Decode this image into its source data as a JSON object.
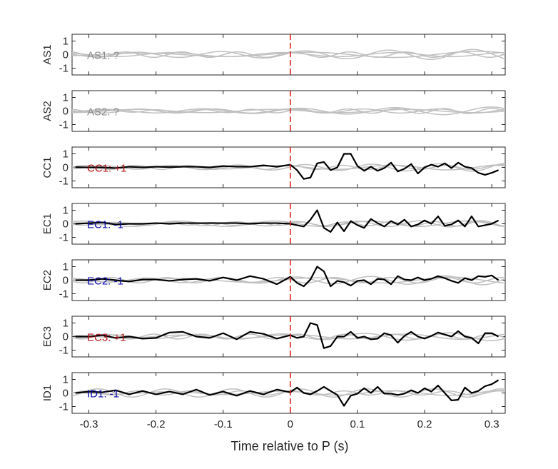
{
  "chart_data": {
    "type": "line",
    "xlabel": "Time relative to P (s)",
    "xlim": [
      -0.325,
      0.32
    ],
    "ylim": [
      -1.5,
      1.5
    ],
    "x_ticks": [
      -0.3,
      -0.2,
      -0.1,
      0,
      0.1,
      0.2,
      0.3
    ],
    "x_tick_labels": [
      "-0.3",
      "-0.2",
      "-0.1",
      "0",
      "0.1",
      "0.2",
      "0.3"
    ],
    "y_ticks": [
      -1,
      0,
      1
    ],
    "y_tick_labels": [
      "-1",
      "0",
      "1"
    ],
    "marker_time": 0,
    "colors": {
      "trace": "#000000",
      "background_traces": "#c0c0c0",
      "marker": "#e0231c",
      "label_unknown": "#8c8c8c",
      "label_positive": "#b01010",
      "label_negative": "#0a0aa8",
      "axes": "#262626"
    },
    "panels": [
      {
        "name": "AS1",
        "label": "AS1: ?",
        "polarity": "unknown",
        "trace": null,
        "background": [
          {
            "amp": 0.4,
            "freq": 8,
            "phase": 0.5,
            "envelope": "late"
          },
          {
            "amp": 0.2,
            "freq": 12,
            "phase": 1.2,
            "envelope": "flat"
          },
          {
            "amp": 0.15,
            "freq": 6,
            "phase": 2.0,
            "envelope": "flat"
          },
          {
            "amp": 0.25,
            "freq": 4,
            "phase": 0.9,
            "envelope": "late"
          }
        ]
      },
      {
        "name": "AS2",
        "label": "AS2: ?",
        "polarity": "unknown",
        "trace": null,
        "background": [
          {
            "amp": 0.2,
            "freq": 14,
            "phase": 0.3,
            "envelope": "late"
          },
          {
            "amp": 0.15,
            "freq": 9,
            "phase": 1.7,
            "envelope": "flat"
          },
          {
            "amp": 0.12,
            "freq": 5,
            "phase": 2.4,
            "envelope": "flat"
          },
          {
            "amp": 0.3,
            "freq": 7,
            "phase": 1.0,
            "envelope": "late"
          }
        ]
      },
      {
        "name": "CC1",
        "label": "CC1: +1",
        "polarity": "positive",
        "trace": {
          "x": [
            -0.32,
            -0.3,
            -0.28,
            -0.26,
            -0.24,
            -0.22,
            -0.2,
            -0.18,
            -0.16,
            -0.14,
            -0.12,
            -0.1,
            -0.08,
            -0.06,
            -0.04,
            -0.02,
            0.0,
            0.01,
            0.02,
            0.03,
            0.04,
            0.05,
            0.06,
            0.07,
            0.08,
            0.09,
            0.1,
            0.11,
            0.12,
            0.13,
            0.14,
            0.15,
            0.16,
            0.17,
            0.18,
            0.19,
            0.2,
            0.21,
            0.22,
            0.23,
            0.24,
            0.25,
            0.26,
            0.27,
            0.28,
            0.29,
            0.3,
            0.31
          ],
          "y": [
            0.02,
            0.0,
            0.0,
            -0.05,
            0.05,
            0.0,
            0.05,
            0.02,
            0.05,
            0.05,
            0.0,
            0.1,
            0.05,
            0.05,
            0.15,
            0.05,
            0.2,
            -0.2,
            -0.85,
            -0.75,
            0.3,
            0.4,
            -0.2,
            0.0,
            1.0,
            1.0,
            0.1,
            -0.25,
            0.05,
            -0.25,
            -0.05,
            0.35,
            -0.3,
            -0.1,
            0.25,
            -0.45,
            0.0,
            0.2,
            0.05,
            0.3,
            -0.05,
            0.35,
            0.05,
            -0.05,
            -0.4,
            -0.55,
            -0.4,
            -0.2
          ]
        },
        "background": [
          {
            "amp": 0.3,
            "freq": 10,
            "phase": 0.2,
            "envelope": "late"
          },
          {
            "amp": 0.15,
            "freq": 13,
            "phase": 1.5,
            "envelope": "flat"
          },
          {
            "amp": 0.2,
            "freq": 6,
            "phase": 2.2,
            "envelope": "late"
          }
        ]
      },
      {
        "name": "EC1",
        "label": "EC1: -1",
        "polarity": "negative",
        "trace": {
          "x": [
            -0.32,
            -0.3,
            -0.28,
            -0.26,
            -0.24,
            -0.22,
            -0.2,
            -0.18,
            -0.16,
            -0.14,
            -0.12,
            -0.1,
            -0.08,
            -0.06,
            -0.04,
            -0.02,
            0.0,
            0.01,
            0.02,
            0.03,
            0.04,
            0.05,
            0.06,
            0.07,
            0.08,
            0.09,
            0.1,
            0.11,
            0.12,
            0.13,
            0.14,
            0.15,
            0.16,
            0.17,
            0.18,
            0.19,
            0.2,
            0.21,
            0.22,
            0.23,
            0.24,
            0.25,
            0.26,
            0.27,
            0.28,
            0.29,
            0.3,
            0.31
          ],
          "y": [
            0.0,
            0.05,
            0.1,
            -0.05,
            0.0,
            0.0,
            0.05,
            0.0,
            0.05,
            0.05,
            0.05,
            0.05,
            0.05,
            0.0,
            0.05,
            0.05,
            0.0,
            -0.1,
            -0.2,
            0.3,
            1.0,
            -0.3,
            -0.6,
            0.1,
            -0.55,
            0.2,
            -0.1,
            -0.3,
            0.35,
            0.05,
            -0.2,
            0.2,
            -0.05,
            0.3,
            -0.2,
            -0.05,
            0.25,
            0.0,
            0.55,
            -0.15,
            -0.05,
            0.25,
            -0.2,
            0.55,
            -0.2,
            -0.1,
            0.0,
            0.25
          ]
        },
        "background": [
          {
            "amp": 0.25,
            "freq": 11,
            "phase": 0.9,
            "envelope": "late"
          },
          {
            "amp": 0.2,
            "freq": 7,
            "phase": 2.6,
            "envelope": "flat"
          },
          {
            "amp": 0.18,
            "freq": 15,
            "phase": 0.1,
            "envelope": "late"
          }
        ]
      },
      {
        "name": "EC2",
        "label": "EC2: -1",
        "polarity": "negative",
        "trace": {
          "x": [
            -0.32,
            -0.3,
            -0.28,
            -0.26,
            -0.24,
            -0.22,
            -0.2,
            -0.18,
            -0.16,
            -0.14,
            -0.12,
            -0.1,
            -0.08,
            -0.06,
            -0.04,
            -0.02,
            0.0,
            0.01,
            0.02,
            0.03,
            0.04,
            0.05,
            0.06,
            0.07,
            0.08,
            0.09,
            0.1,
            0.11,
            0.12,
            0.13,
            0.14,
            0.15,
            0.16,
            0.17,
            0.18,
            0.19,
            0.2,
            0.21,
            0.22,
            0.23,
            0.24,
            0.25,
            0.26,
            0.27,
            0.28,
            0.29,
            0.3,
            0.31
          ],
          "y": [
            0.0,
            0.0,
            0.1,
            0.0,
            -0.1,
            0.05,
            0.05,
            -0.05,
            0.05,
            0.1,
            -0.05,
            0.2,
            0.0,
            0.3,
            0.1,
            -0.3,
            0.25,
            -0.2,
            -0.45,
            0.05,
            1.0,
            0.65,
            -0.45,
            -0.05,
            -0.15,
            -0.4,
            -0.05,
            0.0,
            -0.3,
            0.1,
            0.05,
            -0.3,
            0.3,
            0.05,
            0.0,
            0.2,
            0.0,
            0.1,
            0.3,
            0.15,
            -0.05,
            -0.2,
            0.15,
            0.0,
            0.3,
            0.25,
            0.35,
            0.0
          ]
        },
        "background": [
          {
            "amp": 0.35,
            "freq": 9,
            "phase": 1.1,
            "envelope": "late"
          },
          {
            "amp": 0.2,
            "freq": 12,
            "phase": 2.9,
            "envelope": "flat"
          },
          {
            "amp": 0.25,
            "freq": 5,
            "phase": 0.4,
            "envelope": "late"
          }
        ]
      },
      {
        "name": "EC3",
        "label": "EC3: +1",
        "polarity": "positive",
        "trace": {
          "x": [
            -0.32,
            -0.3,
            -0.28,
            -0.26,
            -0.24,
            -0.22,
            -0.2,
            -0.18,
            -0.16,
            -0.14,
            -0.12,
            -0.1,
            -0.08,
            -0.06,
            -0.04,
            -0.02,
            0.0,
            0.01,
            0.02,
            0.03,
            0.04,
            0.05,
            0.06,
            0.07,
            0.08,
            0.09,
            0.1,
            0.11,
            0.12,
            0.13,
            0.14,
            0.15,
            0.16,
            0.17,
            0.18,
            0.19,
            0.2,
            0.21,
            0.22,
            0.23,
            0.24,
            0.25,
            0.26,
            0.27,
            0.28,
            0.29,
            0.3,
            0.31
          ],
          "y": [
            0.0,
            0.0,
            0.1,
            -0.1,
            0.0,
            -0.15,
            -0.1,
            0.3,
            0.35,
            0.0,
            -0.1,
            0.25,
            -0.2,
            0.35,
            0.2,
            -0.15,
            0.1,
            -0.1,
            0.0,
            1.0,
            0.85,
            -0.85,
            -0.7,
            0.0,
            0.0,
            0.35,
            -0.1,
            0.0,
            -0.2,
            -0.15,
            0.25,
            0.1,
            -0.45,
            0.05,
            0.35,
            0.0,
            -0.15,
            0.05,
            0.3,
            0.15,
            0.0,
            0.4,
            0.0,
            -0.1,
            -0.5,
            0.25,
            0.25,
            0.0
          ]
        },
        "background": [
          {
            "amp": 0.3,
            "freq": 8,
            "phase": 2.3,
            "envelope": "late"
          },
          {
            "amp": 0.18,
            "freq": 14,
            "phase": 0.6,
            "envelope": "flat"
          },
          {
            "amp": 0.22,
            "freq": 6,
            "phase": 1.4,
            "envelope": "late"
          }
        ]
      },
      {
        "name": "ID1",
        "label": "ID1: -1",
        "polarity": "negative",
        "trace": {
          "x": [
            -0.32,
            -0.3,
            -0.28,
            -0.26,
            -0.24,
            -0.22,
            -0.2,
            -0.18,
            -0.16,
            -0.14,
            -0.12,
            -0.1,
            -0.08,
            -0.06,
            -0.04,
            -0.02,
            0.0,
            0.01,
            0.02,
            0.03,
            0.04,
            0.05,
            0.06,
            0.07,
            0.08,
            0.09,
            0.1,
            0.11,
            0.12,
            0.13,
            0.14,
            0.15,
            0.16,
            0.17,
            0.18,
            0.19,
            0.2,
            0.21,
            0.22,
            0.23,
            0.24,
            0.25,
            0.26,
            0.27,
            0.28,
            0.29,
            0.3,
            0.31
          ],
          "y": [
            0.0,
            0.1,
            0.05,
            0.2,
            -0.1,
            0.15,
            -0.1,
            0.1,
            -0.1,
            0.25,
            -0.15,
            0.1,
            -0.2,
            0.15,
            -0.1,
            0.25,
            0.05,
            0.4,
            0.0,
            -0.1,
            0.15,
            0.45,
            0.15,
            -0.15,
            -0.95,
            -0.2,
            -0.05,
            0.35,
            0.0,
            0.45,
            -0.05,
            -0.05,
            -0.15,
            -0.05,
            0.2,
            0.0,
            0.35,
            0.1,
            0.55,
            0.0,
            -0.55,
            -0.5,
            0.4,
            0.0,
            0.15,
            0.5,
            0.65,
            0.95
          ]
        },
        "background": [
          {
            "amp": 0.3,
            "freq": 10,
            "phase": 0.7,
            "envelope": "flat"
          },
          {
            "amp": 0.2,
            "freq": 6,
            "phase": 2.1,
            "envelope": "late"
          },
          {
            "amp": 0.15,
            "freq": 13,
            "phase": 1.3,
            "envelope": "flat"
          }
        ]
      }
    ]
  }
}
